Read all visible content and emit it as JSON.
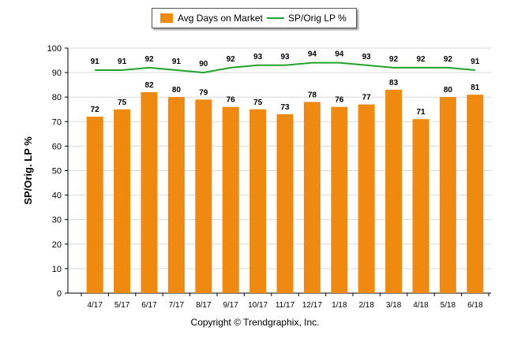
{
  "legend": {
    "bar_label": "Avg Days on Market",
    "line_label": "SP/Orig LP %"
  },
  "footer": "Copyright © Trendgraphix, Inc.",
  "colors": {
    "bar": "#f0890f",
    "line": "#22a22a",
    "grid": "#d9d9d9"
  },
  "chart_data": {
    "type": "bar",
    "title": "",
    "xlabel": "",
    "ylabel": "SP/Orig. LP %",
    "ylim": [
      0,
      100
    ],
    "yticks": [
      0,
      10,
      20,
      30,
      40,
      50,
      60,
      70,
      80,
      90,
      100
    ],
    "grid": true,
    "legend_position": "top",
    "categories": [
      "4/17",
      "5/17",
      "6/17",
      "7/17",
      "8/17",
      "9/17",
      "10/17",
      "11/17",
      "12/17",
      "1/18",
      "2/18",
      "3/18",
      "4/18",
      "5/18",
      "6/18"
    ],
    "series": [
      {
        "name": "Avg Days on Market",
        "type": "bar",
        "values": [
          72,
          75,
          82,
          80,
          79,
          76,
          75,
          73,
          78,
          76,
          77,
          83,
          71,
          80,
          81
        ]
      },
      {
        "name": "SP/Orig LP %",
        "type": "line",
        "values": [
          91,
          91,
          92,
          91,
          90,
          92,
          93,
          93,
          94,
          94,
          93,
          92,
          92,
          92,
          91
        ]
      }
    ]
  }
}
